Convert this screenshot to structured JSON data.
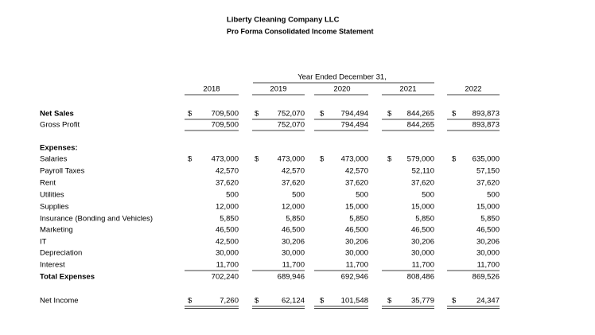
{
  "header": {
    "company": "Liberty Cleaning Company LLC",
    "title": "Pro Forma Consolidated Income Statement"
  },
  "table": {
    "period": "Year Ended December 31,",
    "years": [
      "2018",
      "2019",
      "2020",
      "2021",
      "2022"
    ],
    "rows": [
      {
        "label": "Net Sales",
        "signs": [
          "$",
          "$",
          "$",
          "$",
          "$"
        ],
        "values": [
          "709,500",
          "752,070",
          "794,494",
          "844,265",
          "893,873"
        ]
      },
      {
        "label": "Gross Profit",
        "values": [
          "709,500",
          "752,070",
          "794,494",
          "844,265",
          "893,873"
        ]
      },
      {
        "label": "Expenses:"
      },
      {
        "label": "Salaries",
        "signs": [
          "$",
          "$",
          "$",
          "$",
          "$"
        ],
        "values": [
          "473,000",
          "473,000",
          "473,000",
          "579,000",
          "635,000"
        ]
      },
      {
        "label": "Payroll Taxes",
        "values": [
          "42,570",
          "42,570",
          "42,570",
          "52,110",
          "57,150"
        ]
      },
      {
        "label": "Rent",
        "values": [
          "37,620",
          "37,620",
          "37,620",
          "37,620",
          "37,620"
        ]
      },
      {
        "label": "Utilities",
        "values": [
          "500",
          "500",
          "500",
          "500",
          "500"
        ]
      },
      {
        "label": "Supplies",
        "values": [
          "12,000",
          "12,000",
          "15,000",
          "15,000",
          "15,000"
        ]
      },
      {
        "label": "Insurance (Bonding and Vehicles)",
        "values": [
          "5,850",
          "5,850",
          "5,850",
          "5,850",
          "5,850"
        ]
      },
      {
        "label": "Marketing",
        "values": [
          "46,500",
          "46,500",
          "46,500",
          "46,500",
          "46,500"
        ]
      },
      {
        "label": "IT",
        "values": [
          "42,500",
          "30,206",
          "30,206",
          "30,206",
          "30,206"
        ]
      },
      {
        "label": "Depreciation",
        "values": [
          "30,000",
          "30,000",
          "30,000",
          "30,000",
          "30,000"
        ]
      },
      {
        "label": "Interest",
        "values": [
          "11,700",
          "11,700",
          "11,700",
          "11,700",
          "11,700"
        ]
      },
      {
        "label": "Total Expenses",
        "values": [
          "702,240",
          "689,946",
          "692,946",
          "808,486",
          "869,526"
        ]
      },
      {
        "label": "Net Income",
        "signs": [
          "$",
          "$",
          "$",
          "$",
          "$"
        ],
        "values": [
          "7,260",
          "62,124",
          "101,548",
          "35,779",
          "24,347"
        ]
      }
    ]
  }
}
